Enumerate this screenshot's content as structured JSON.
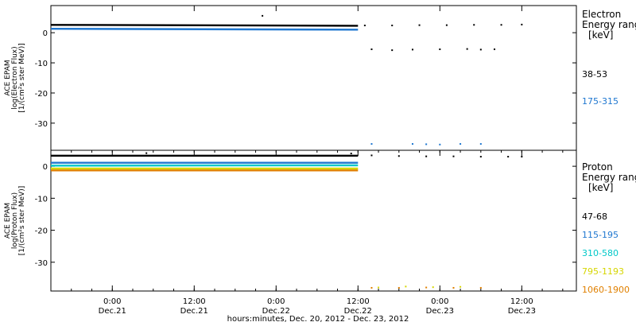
{
  "chart_data": [
    {
      "type": "scatter",
      "panel": "top",
      "ylabel_lines": [
        "ACE EPAM",
        "log(Electron Flux)",
        "[1/(cm²s ster MeV)]"
      ],
      "ylim": [
        -39,
        9
      ],
      "yticks": [
        0,
        -10,
        -20,
        -30
      ],
      "ytick_labels": [
        "0",
        "-10",
        "-20",
        "-30"
      ],
      "legend_title_lines": [
        "Electron",
        "Energy range",
        "[keV]"
      ],
      "series": [
        {
          "name": "38-53",
          "color": "#000000",
          "segments": [
            {
              "x": [
                0.0,
                45.0
              ],
              "y": [
                2.6,
                2.3
              ]
            }
          ],
          "points": [
            {
              "x": 46,
              "y": 2.4
            },
            {
              "x": 50,
              "y": 2.4
            },
            {
              "x": 54,
              "y": 2.5
            },
            {
              "x": 58,
              "y": 2.5
            },
            {
              "x": 62,
              "y": 2.6
            },
            {
              "x": 66,
              "y": 2.6
            },
            {
              "x": 69,
              "y": 2.7
            },
            {
              "x": 31,
              "y": 5.6
            },
            {
              "x": 47,
              "y": -5.5
            },
            {
              "x": 50,
              "y": -5.8
            },
            {
              "x": 53,
              "y": -5.6
            },
            {
              "x": 57,
              "y": -5.5
            },
            {
              "x": 61,
              "y": -5.4
            },
            {
              "x": 63,
              "y": -5.6
            },
            {
              "x": 65,
              "y": -5.5
            }
          ]
        },
        {
          "name": "175-315",
          "color": "#1f77d0",
          "segments": [
            {
              "x": [
                0.0,
                45.0
              ],
              "y": [
                1.3,
                1.0
              ]
            }
          ],
          "points": [
            {
              "x": 47,
              "y": -36.9
            },
            {
              "x": 53,
              "y": -36.9
            },
            {
              "x": 55,
              "y": -37.0
            },
            {
              "x": 57,
              "y": -37.1
            },
            {
              "x": 60,
              "y": -36.9
            },
            {
              "x": 63,
              "y": -36.9
            }
          ]
        }
      ]
    },
    {
      "type": "scatter",
      "panel": "bottom",
      "ylabel_lines": [
        "ACE EPAM",
        "log(Proton Flux)",
        "[1/(cm²s ster MeV)]"
      ],
      "ylim": [
        -39,
        5
      ],
      "yticks": [
        0,
        -10,
        -20,
        -30
      ],
      "ytick_labels": [
        "0",
        "-10",
        "-20",
        "-30"
      ],
      "legend_title_lines": [
        "Proton",
        "Energy range",
        "[keV]"
      ],
      "series": [
        {
          "name": "47-68",
          "color": "#000000",
          "segments": [
            {
              "x": [
                0.0,
                45.0
              ],
              "y": [
                3.3,
                3.3
              ]
            }
          ],
          "points": [
            {
              "x": 14,
              "y": 4.1
            },
            {
              "x": 44,
              "y": 4.0
            },
            {
              "x": 47,
              "y": 3.4
            },
            {
              "x": 51,
              "y": 3.2
            },
            {
              "x": 55,
              "y": 3.1
            },
            {
              "x": 59,
              "y": 3.1
            },
            {
              "x": 63,
              "y": 3.0
            },
            {
              "x": 67,
              "y": 3.0
            },
            {
              "x": 69,
              "y": 3.0
            }
          ]
        },
        {
          "name": "115-195",
          "color": "#1f77d0",
          "segments": [
            {
              "x": [
                0.0,
                45.0
              ],
              "y": [
                1.1,
                1.1
              ]
            }
          ],
          "points": []
        },
        {
          "name": "310-580",
          "color": "#00c8c8",
          "segments": [
            {
              "x": [
                0.0,
                45.0
              ],
              "y": [
                0.2,
                0.3
              ]
            }
          ],
          "points": []
        },
        {
          "name": "795-1193",
          "color": "#d6d600",
          "segments": [
            {
              "x": [
                0.0,
                45.0
              ],
              "y": [
                -0.7,
                -0.7
              ]
            }
          ],
          "points": [
            {
              "x": 48,
              "y": -37.9
            },
            {
              "x": 52,
              "y": -37.6
            },
            {
              "x": 56,
              "y": -37.8
            },
            {
              "x": 60,
              "y": -37.7
            }
          ]
        },
        {
          "name": "1060-1900",
          "color": "#e08000",
          "segments": [
            {
              "x": [
                0.0,
                45.0
              ],
              "y": [
                -1.3,
                -1.3
              ]
            }
          ],
          "points": [
            {
              "x": 47,
              "y": -38.0
            },
            {
              "x": 51,
              "y": -38.0
            },
            {
              "x": 55,
              "y": -37.9
            },
            {
              "x": 59,
              "y": -38.0
            },
            {
              "x": 63,
              "y": -38.0
            }
          ]
        }
      ]
    }
  ],
  "xaxis": {
    "xlim": [
      0,
      77
    ],
    "ticks": [
      {
        "x": 9,
        "top": "0:00",
        "bottom": "Dec.21"
      },
      {
        "x": 21,
        "top": "12:00",
        "bottom": "Dec.21"
      },
      {
        "x": 33,
        "top": "0:00",
        "bottom": "Dec.22"
      },
      {
        "x": 45,
        "top": "12:00",
        "bottom": "Dec.22"
      },
      {
        "x": 57,
        "top": "0:00",
        "bottom": "Dec.23"
      },
      {
        "x": 69,
        "top": "12:00",
        "bottom": "Dec.23"
      }
    ],
    "title": "hours:minutes, Dec. 20, 2012 - Dec. 23, 2012"
  }
}
